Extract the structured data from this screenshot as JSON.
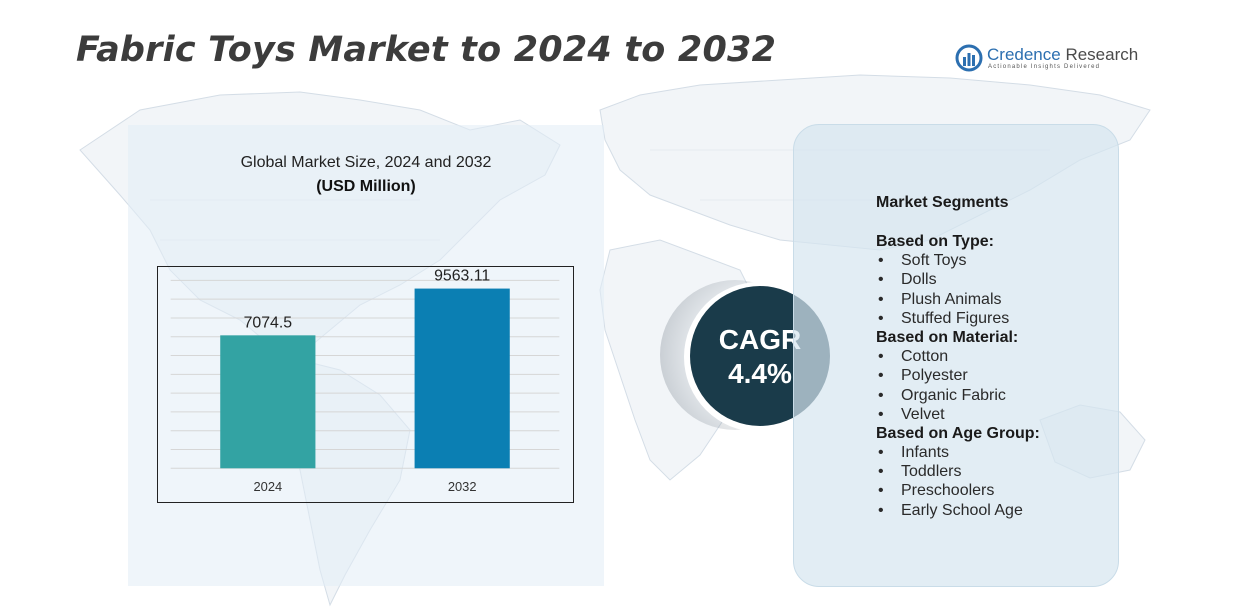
{
  "title": "Fabric Toys Market to 2024 to 2032",
  "logo": {
    "name_part1": "Credence",
    "name_part2": " Research",
    "tagline": "Actionable Insights Delivered"
  },
  "chart_panel": {
    "title": "Global Market Size,  2024 and 2032",
    "unit": "(USD Million)"
  },
  "chart_data": {
    "type": "bar",
    "categories": [
      "2024",
      "2032"
    ],
    "values": [
      7074.5,
      9563.11
    ],
    "value_labels": [
      "7074.5",
      "9563.11"
    ],
    "colors": [
      "#33a3a3",
      "#0b7fb3"
    ],
    "title": "Global Market Size,  2024 and 2032",
    "ylabel": "(USD Million)",
    "ylim": [
      0,
      10500
    ],
    "grid": true,
    "legend": "none"
  },
  "cagr": {
    "label": "CAGR",
    "value": "4.4%"
  },
  "segments": {
    "heading": "Market Segments",
    "groups": [
      {
        "title": "Based on Type:",
        "items": [
          "Soft Toys",
          "Dolls",
          "Plush Animals",
          "Stuffed Figures"
        ]
      },
      {
        "title": "Based on Material:",
        "items": [
          "Cotton",
          "Polyester",
          "Organic Fabric",
          "Velvet"
        ]
      },
      {
        "title": "Based on Age Group:",
        "items": [
          "Infants",
          "Toddlers",
          "Preschoolers",
          "Early School Age"
        ]
      }
    ]
  },
  "colors": {
    "title_text": "#3c3c3c",
    "cagr_circle": "#1a3b4a",
    "panel_bg": "#e2ecf6",
    "brand_blue": "#2c6fb0"
  }
}
